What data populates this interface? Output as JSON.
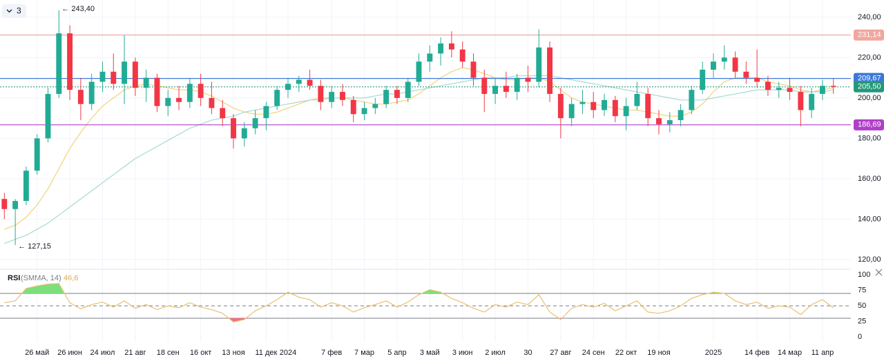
{
  "badge": "3",
  "chart_data": {
    "type": "candlestick",
    "categories": [
      null,
      null,
      null,
      "26 май",
      null,
      null,
      "26 июн",
      null,
      null,
      "24 июл",
      null,
      null,
      "21 авг",
      null,
      null,
      "18 сен",
      null,
      null,
      "16 окт",
      null,
      null,
      "13 ноя",
      null,
      null,
      "11 дек",
      null,
      "2024",
      null,
      null,
      null,
      "7 фев",
      null,
      null,
      "7 мар",
      null,
      null,
      "5 апр",
      null,
      null,
      "3 май",
      null,
      null,
      "3 июн",
      null,
      null,
      "2 июл",
      null,
      null,
      "30",
      null,
      null,
      "27 авг",
      null,
      null,
      "24 сен",
      null,
      null,
      "22 окт",
      null,
      null,
      "19 ноя",
      null,
      null,
      null,
      null,
      "2025",
      null,
      null,
      null,
      "14 фев",
      null,
      null,
      "14 мар",
      null,
      null,
      "11 апр",
      null
    ],
    "open": [
      150,
      145,
      149,
      164,
      180,
      202,
      232,
      204,
      197,
      208,
      213,
      207,
      218,
      205,
      210,
      196,
      200,
      198,
      207,
      200,
      195,
      190,
      180,
      185,
      190,
      196,
      204,
      207,
      209,
      206,
      198,
      203,
      199,
      192,
      195,
      197,
      204,
      200,
      208,
      218,
      222,
      227,
      224,
      218,
      210,
      202,
      206,
      203,
      210,
      208,
      225,
      202,
      190,
      197,
      198,
      194,
      199,
      191,
      196,
      202,
      190,
      187,
      189,
      194,
      204,
      214,
      218,
      220,
      213,
      210,
      208,
      204,
      205,
      203,
      194,
      202,
      206
    ],
    "high": [
      153,
      150,
      166,
      182,
      205,
      243.4,
      236,
      210,
      212,
      218,
      222,
      231,
      220,
      214,
      212,
      204,
      206,
      210,
      212,
      208,
      199,
      192,
      188,
      194,
      198,
      206,
      210,
      211,
      214,
      209,
      206,
      207,
      201,
      198,
      200,
      206,
      206,
      210,
      222,
      226,
      230,
      233,
      228,
      222,
      214,
      210,
      213,
      212,
      216,
      234,
      228,
      205,
      200,
      204,
      203,
      202,
      201,
      200,
      208,
      205,
      194,
      193,
      197,
      206,
      218,
      222,
      226,
      223,
      218,
      224,
      211,
      208,
      210,
      206,
      205,
      209,
      210
    ],
    "low": [
      140,
      127.15,
      147,
      162,
      178,
      200,
      199,
      189,
      194,
      203,
      204,
      197,
      201,
      198,
      193,
      191,
      194,
      195,
      196,
      192,
      186,
      175,
      176,
      182,
      184,
      194,
      200,
      203,
      204,
      194,
      195,
      196,
      188,
      189,
      192,
      195,
      197,
      198,
      206,
      213,
      216,
      220,
      215,
      206,
      193,
      197,
      200,
      199,
      203,
      205,
      198,
      180,
      186,
      192,
      190,
      191,
      188,
      184,
      194,
      186,
      182,
      183,
      186,
      192,
      202,
      210,
      214,
      210,
      207,
      205,
      201,
      200,
      199,
      186,
      190,
      199,
      202
    ],
    "close": [
      145,
      149,
      164,
      180,
      202,
      232,
      204,
      197,
      208,
      213,
      207,
      218,
      205,
      210,
      196,
      200,
      198,
      207,
      200,
      195,
      190,
      180,
      185,
      190,
      196,
      204,
      207,
      209,
      206,
      198,
      203,
      199,
      192,
      195,
      197,
      204,
      200,
      208,
      218,
      222,
      227,
      224,
      218,
      210,
      202,
      206,
      203,
      210,
      208,
      225,
      202,
      190,
      197,
      198,
      194,
      199,
      191,
      196,
      202,
      190,
      187,
      189,
      194,
      204,
      214,
      218,
      220,
      213,
      210,
      208,
      204,
      205,
      203,
      194,
      202,
      206,
      205.5
    ],
    "up_color": "#22ab94",
    "down_color": "#f23645",
    "lines": [
      {
        "color": "#f2d27a",
        "values": [
          135,
          137,
          141,
          147,
          155,
          165,
          175,
          183,
          190,
          196,
          200,
          204,
          206,
          207,
          206,
          205,
          204,
          204,
          203,
          201,
          198,
          195,
          193,
          192,
          192,
          193,
          195,
          197,
          199,
          200,
          200,
          200,
          199,
          198,
          197,
          197,
          198,
          199,
          202,
          206,
          210,
          213,
          215,
          214,
          212,
          210,
          209,
          209,
          210,
          210,
          208,
          204,
          200,
          198,
          197,
          196,
          195,
          194,
          194,
          193,
          192,
          191,
          191,
          193,
          197,
          203,
          208,
          210,
          210,
          210,
          208,
          207,
          206,
          204,
          203,
          204,
          205
        ]
      },
      {
        "color": "#a8d8d0",
        "values": [
          128,
          130,
          132,
          135,
          138,
          142,
          146,
          150,
          154,
          158,
          162,
          166,
          170,
          173,
          176,
          179,
          182,
          185,
          187,
          189,
          190,
          191,
          193,
          194,
          195,
          196,
          197,
          198,
          199,
          199,
          200,
          200,
          200,
          200,
          201,
          202,
          202,
          203,
          204,
          205,
          206,
          207,
          208,
          209,
          210,
          210,
          210,
          211,
          211,
          211,
          211,
          210,
          209,
          208,
          207,
          206,
          205,
          204,
          203,
          202,
          201,
          200,
          199,
          199,
          199,
          200,
          201,
          202,
          203,
          204,
          204,
          204,
          204,
          203,
          203,
          203,
          204
        ]
      }
    ],
    "levels": [
      {
        "value": 231.14,
        "label": "231,14",
        "color": "#f0a79f",
        "style": "solid"
      },
      {
        "value": 209.67,
        "label": "209,67",
        "color": "#3d78d8",
        "style": "solid"
      },
      {
        "value": 205.5,
        "label": "205,50",
        "color": "#22997a",
        "style": "dotted"
      },
      {
        "value": 186.69,
        "label": "186,69",
        "color": "#b03fc8",
        "style": "solid"
      }
    ],
    "annotations": [
      "← 243,40",
      "← 127,15"
    ],
    "ylim": [
      116.9,
      248.5
    ],
    "yticks": [
      {
        "value": 120,
        "label": "120,00"
      },
      {
        "value": 140,
        "label": "140,00"
      },
      {
        "value": 160,
        "label": "160,00"
      },
      {
        "value": 180,
        "label": "180,00"
      },
      {
        "value": 200,
        "label": "200,00"
      },
      {
        "value": 220,
        "label": "220,00"
      },
      {
        "value": 240,
        "label": "240,00"
      }
    ],
    "grid": true,
    "rsi": {
      "title": "RSI",
      "params": "(SMMA, 14)",
      "current": {
        "value": 46.6,
        "label": "46,6"
      },
      "color": "#e9bf72",
      "values": [
        55,
        58,
        78,
        82,
        85,
        86,
        55,
        45,
        52,
        56,
        48,
        58,
        46,
        52,
        44,
        50,
        47,
        55,
        48,
        44,
        38,
        24,
        28,
        42,
        50,
        60,
        72,
        64,
        60,
        48,
        55,
        50,
        40,
        47,
        52,
        58,
        48,
        56,
        68,
        76,
        72,
        62,
        55,
        46,
        40,
        52,
        48,
        56,
        52,
        68,
        40,
        28,
        46,
        52,
        48,
        54,
        42,
        50,
        58,
        40,
        38,
        42,
        50,
        62,
        68,
        72,
        70,
        58,
        52,
        56,
        46,
        50,
        48,
        36,
        52,
        60,
        46.6
      ],
      "ylim": [
        -7.8,
        108.9
      ],
      "yticks": [
        0,
        25,
        50,
        75,
        100
      ],
      "levels": [
        30,
        50,
        70
      ],
      "high_fill": "#7be07b",
      "low_fill": "#f2707a"
    }
  }
}
